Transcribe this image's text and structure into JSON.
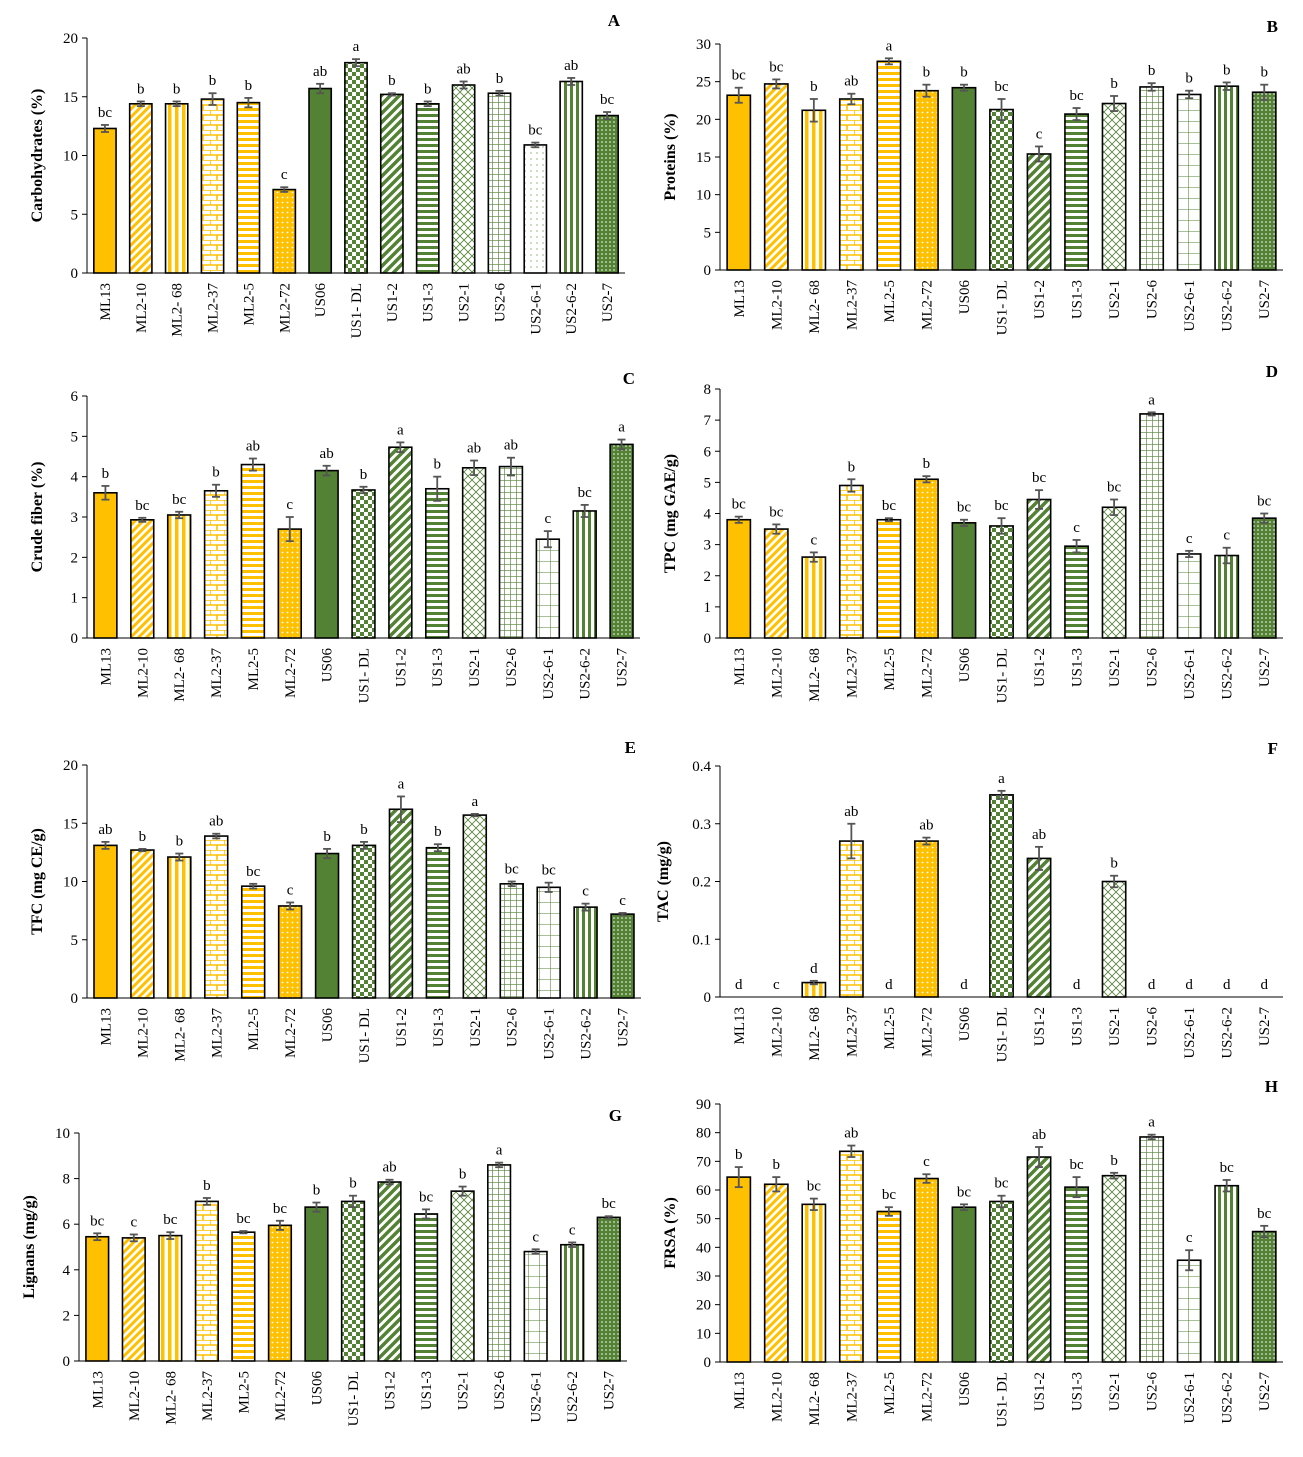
{
  "figure": {
    "categories": [
      "ML13",
      "ML2-10",
      "ML2- 68",
      "ML2-37",
      "ML2-5",
      "ML2-72",
      "US06",
      "US1- DL",
      "US1-2",
      "US1-3",
      "US2-1",
      "US2-6",
      "US2-6-1",
      "US2-6-2",
      "US2-7"
    ],
    "colors": {
      "yellow": "#FFC000",
      "green": "#548235",
      "white": "#ffffff",
      "error": "#555555"
    }
  },
  "chart_data": [
    {
      "type": "bar",
      "panel": "A",
      "ylabel": "Carbohydrates (%)",
      "ylim": [
        0,
        20
      ],
      "yticks": [
        0,
        5,
        10,
        15,
        20
      ],
      "values": [
        12.3,
        14.4,
        14.4,
        14.8,
        14.5,
        7.1,
        15.7,
        17.9,
        15.2,
        14.4,
        16.0,
        15.3,
        10.9,
        16.3,
        13.4
      ],
      "errors": [
        0.3,
        0.2,
        0.2,
        0.5,
        0.4,
        0.2,
        0.4,
        0.3,
        0.1,
        0.2,
        0.3,
        0.2,
        0.2,
        0.3,
        0.3
      ],
      "letters": [
        "bc",
        "b",
        "b",
        "b",
        "b",
        "c",
        "ab",
        "a",
        "b",
        "b",
        "ab",
        "b",
        "bc",
        "ab",
        "bc"
      ]
    },
    {
      "type": "bar",
      "panel": "B",
      "ylabel": "Proteins (%)",
      "ylim": [
        0,
        30
      ],
      "yticks": [
        0,
        5,
        10,
        15,
        20,
        25,
        30
      ],
      "values": [
        23.2,
        24.7,
        21.2,
        22.7,
        27.7,
        23.8,
        24.2,
        21.3,
        15.4,
        20.7,
        22.1,
        24.3,
        23.3,
        24.4,
        23.6
      ],
      "errors": [
        1.0,
        0.6,
        1.5,
        0.7,
        0.4,
        0.8,
        0.4,
        1.4,
        1.0,
        0.8,
        1.0,
        0.5,
        0.5,
        0.5,
        1.0
      ],
      "letters": [
        "bc",
        "bc",
        "b",
        "ab",
        "a",
        "b",
        "b",
        "bc",
        "c",
        "bc",
        "b",
        "b",
        "b",
        "b",
        "b"
      ]
    },
    {
      "type": "bar",
      "panel": "C",
      "ylabel": "Crude fiber (%)",
      "ylim": [
        0,
        6
      ],
      "yticks": [
        0,
        1,
        2,
        3,
        4,
        5,
        6
      ],
      "values": [
        3.6,
        2.93,
        3.05,
        3.65,
        4.3,
        2.7,
        4.15,
        3.67,
        4.73,
        3.7,
        4.22,
        4.25,
        2.45,
        3.15,
        4.8
      ],
      "errors": [
        0.17,
        0.05,
        0.08,
        0.15,
        0.15,
        0.3,
        0.12,
        0.08,
        0.12,
        0.3,
        0.18,
        0.22,
        0.2,
        0.15,
        0.12
      ],
      "letters": [
        "b",
        "bc",
        "bc",
        "b",
        "ab",
        "c",
        "ab",
        "b",
        "a",
        "b",
        "ab",
        "ab",
        "c",
        "bc",
        "a"
      ]
    },
    {
      "type": "bar",
      "panel": "D",
      "ylabel": "TPC (mg GAE/g)",
      "ylim": [
        0,
        8
      ],
      "yticks": [
        0,
        1,
        2,
        3,
        4,
        5,
        6,
        7,
        8
      ],
      "values": [
        3.8,
        3.5,
        2.6,
        4.9,
        3.8,
        5.1,
        3.7,
        3.6,
        4.45,
        2.95,
        4.2,
        7.2,
        2.7,
        2.65,
        3.85
      ],
      "errors": [
        0.1,
        0.15,
        0.15,
        0.2,
        0.05,
        0.1,
        0.1,
        0.25,
        0.3,
        0.2,
        0.25,
        0.05,
        0.1,
        0.25,
        0.15
      ],
      "letters": [
        "bc",
        "bc",
        "c",
        "b",
        "bc",
        "b",
        "bc",
        "bc",
        "bc",
        "c",
        "bc",
        "a",
        "c",
        "c",
        "bc"
      ]
    },
    {
      "type": "bar",
      "panel": "E",
      "ylabel": "TFC (mg CE/g)",
      "ylim": [
        0,
        20
      ],
      "yticks": [
        0,
        5,
        10,
        15,
        20
      ],
      "values": [
        13.1,
        12.7,
        12.1,
        13.9,
        9.6,
        7.9,
        12.4,
        13.1,
        16.2,
        12.9,
        15.7,
        9.8,
        9.5,
        7.8,
        7.2
      ],
      "errors": [
        0.3,
        0.1,
        0.3,
        0.2,
        0.2,
        0.3,
        0.4,
        0.3,
        1.1,
        0.3,
        0.1,
        0.2,
        0.4,
        0.3,
        0.1
      ],
      "letters": [
        "ab",
        "b",
        "b",
        "ab",
        "bc",
        "c",
        "b",
        "b",
        "a",
        "b",
        "a",
        "bc",
        "bc",
        "c",
        "c"
      ]
    },
    {
      "type": "bar",
      "panel": "F",
      "ylabel": "TAC (mg/g)",
      "ylim": [
        0,
        0.4
      ],
      "yticks": [
        0,
        0.1,
        0.2,
        0.3,
        0.4
      ],
      "values": [
        0,
        0,
        0.025,
        0.27,
        0,
        0.27,
        0,
        0.35,
        0.24,
        0,
        0.2,
        0,
        0,
        0,
        0
      ],
      "errors": [
        0,
        0,
        0.003,
        0.03,
        0,
        0.006,
        0,
        0.007,
        0.02,
        0,
        0.01,
        0,
        0,
        0,
        0
      ],
      "letters": [
        "d",
        "c",
        "d",
        "ab",
        "d",
        "ab",
        "d",
        "a",
        "ab",
        "d",
        "b",
        "d",
        "d",
        "d",
        "d"
      ]
    },
    {
      "type": "bar",
      "panel": "G",
      "ylabel": "Lignans (mg/g)",
      "ylim": [
        0,
        10
      ],
      "yticks": [
        0,
        2,
        4,
        6,
        8,
        10
      ],
      "values": [
        5.45,
        5.4,
        5.5,
        7.0,
        5.65,
        5.95,
        6.75,
        7.0,
        7.85,
        6.45,
        7.45,
        8.6,
        4.8,
        5.1,
        6.3
      ],
      "errors": [
        0.15,
        0.15,
        0.15,
        0.15,
        0.05,
        0.2,
        0.2,
        0.25,
        0.1,
        0.2,
        0.2,
        0.1,
        0.1,
        0.1,
        0.05
      ],
      "letters": [
        "bc",
        "c",
        "bc",
        "b",
        "bc",
        "bc",
        "b",
        "b",
        "ab",
        "bc",
        "b",
        "a",
        "c",
        "c",
        "bc"
      ]
    },
    {
      "type": "bar",
      "panel": "H",
      "ylabel": "FRSA (%)",
      "ylim": [
        0,
        90
      ],
      "yticks": [
        0,
        10,
        20,
        30,
        40,
        50,
        60,
        70,
        80,
        90
      ],
      "values": [
        64.5,
        62.0,
        55.0,
        73.5,
        52.5,
        64.0,
        54.0,
        56.0,
        71.5,
        61.0,
        65.0,
        78.5,
        35.5,
        61.5,
        45.5
      ],
      "errors": [
        3.5,
        2.5,
        2.0,
        2.0,
        1.5,
        1.5,
        1.0,
        2.0,
        3.5,
        3.5,
        1.0,
        0.8,
        3.5,
        2.0,
        2.0
      ],
      "letters": [
        "b",
        "b",
        "bc",
        "ab",
        "bc",
        "c",
        "bc",
        "bc",
        "ab",
        "bc",
        "b",
        "a",
        "c",
        "bc",
        "bc"
      ]
    }
  ]
}
